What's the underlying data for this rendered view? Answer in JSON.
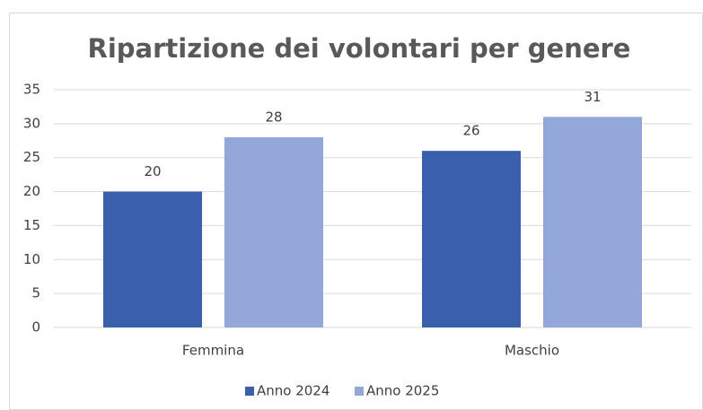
{
  "chart_data": {
    "type": "bar",
    "title": "Ripartizione dei volontari per genere",
    "categories": [
      "Femmina",
      "Maschio"
    ],
    "series": [
      {
        "name": "Anno 2024",
        "color": "#3a5fad",
        "values": [
          20,
          26
        ]
      },
      {
        "name": "Anno 2025",
        "color": "#93a8d8",
        "values": [
          28,
          31
        ]
      }
    ],
    "ylim": [
      0,
      35
    ],
    "yticks": [
      0,
      5,
      10,
      15,
      20,
      25,
      30,
      35
    ],
    "grid": true,
    "legend": "bottom"
  }
}
